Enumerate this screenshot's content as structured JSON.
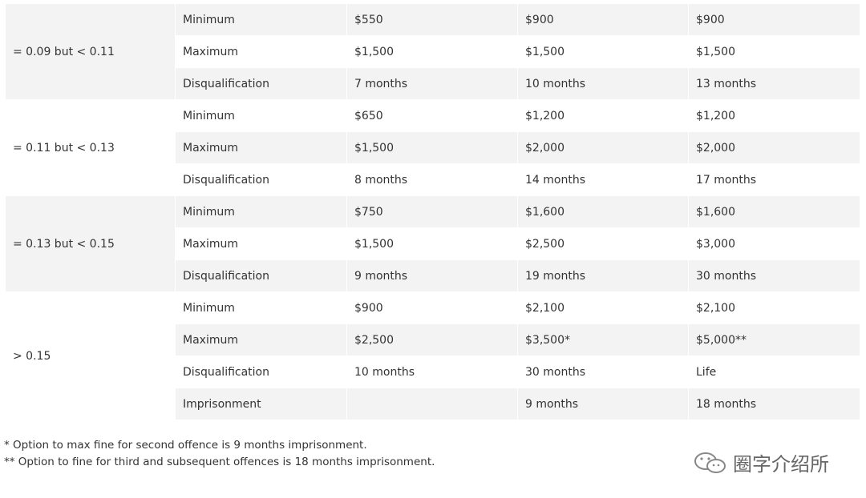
{
  "table": {
    "groups": [
      {
        "label": "= 0.09 but < 0.11",
        "rows": [
          {
            "label": "Minimum",
            "values": [
              "$550",
              "$900",
              "$900"
            ]
          },
          {
            "label": "Maximum",
            "values": [
              "$1,500",
              "$1,500",
              "$1,500"
            ]
          },
          {
            "label": "Disqualification",
            "values": [
              "7 months",
              "10 months",
              "13 months"
            ]
          }
        ]
      },
      {
        "label": "= 0.11 but < 0.13",
        "rows": [
          {
            "label": "Minimum",
            "values": [
              "$650",
              "$1,200",
              "$1,200"
            ]
          },
          {
            "label": "Maximum",
            "values": [
              "$1,500",
              "$2,000",
              "$2,000"
            ]
          },
          {
            "label": "Disqualification",
            "values": [
              "8 months",
              "14 months",
              "17 months"
            ]
          }
        ]
      },
      {
        "label": "= 0.13 but < 0.15",
        "rows": [
          {
            "label": "Minimum",
            "values": [
              "$750",
              "$1,600",
              "$1,600"
            ]
          },
          {
            "label": "Maximum",
            "values": [
              "$1,500",
              "$2,500",
              "$3,000"
            ]
          },
          {
            "label": "Disqualification",
            "values": [
              "9 months",
              "19 months",
              "30 months"
            ]
          }
        ]
      },
      {
        "label": "> 0.15",
        "rows": [
          {
            "label": "Minimum",
            "values": [
              "$900",
              "$2,100",
              "$2,100"
            ]
          },
          {
            "label": "Maximum",
            "values": [
              "$2,500",
              "$3,500*",
              "$5,000**"
            ]
          },
          {
            "label": "Disqualification",
            "values": [
              "10 months",
              "30 months",
              "Life"
            ]
          },
          {
            "label": "Imprisonment",
            "values": [
              null,
              "9 months",
              "18 months"
            ]
          }
        ]
      }
    ]
  },
  "notes": [
    "* Option to max fine for second offence is 9 months imprisonment.",
    "** Option to fine for third and subsequent offences is 18 months imprisonment."
  ],
  "watermark": "圈字介绍所"
}
